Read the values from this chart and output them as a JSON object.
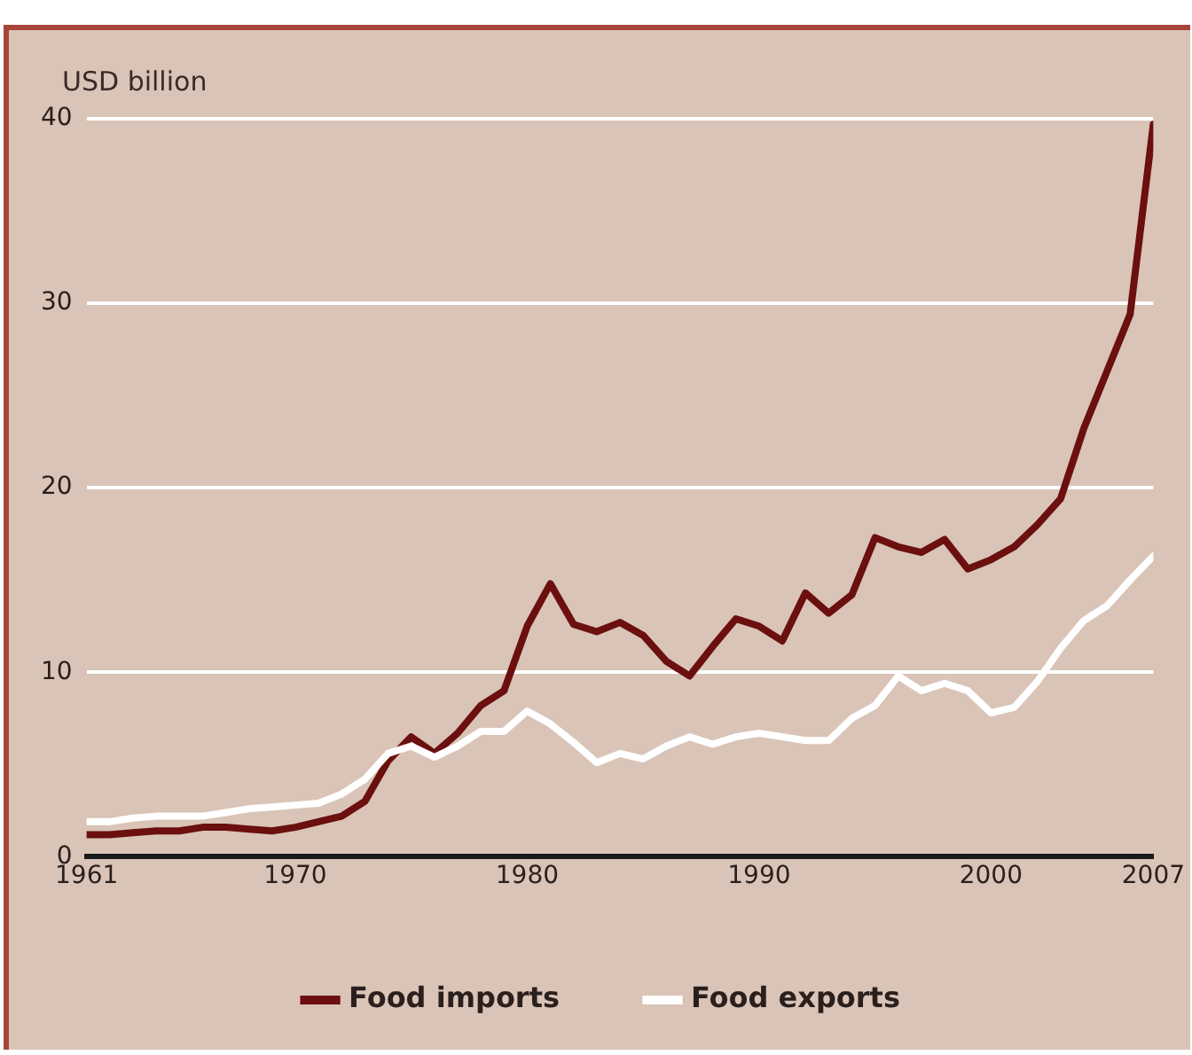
{
  "chart_data": {
    "type": "line",
    "ylabel": "USD billion",
    "x": [
      1961,
      1962,
      1963,
      1964,
      1965,
      1966,
      1967,
      1968,
      1969,
      1970,
      1971,
      1972,
      1973,
      1974,
      1975,
      1976,
      1977,
      1978,
      1979,
      1980,
      1981,
      1982,
      1983,
      1984,
      1985,
      1986,
      1987,
      1988,
      1989,
      1990,
      1991,
      1992,
      1993,
      1994,
      1995,
      1996,
      1997,
      1998,
      1999,
      2000,
      2001,
      2002,
      2003,
      2004,
      2005,
      2006,
      2007
    ],
    "series": [
      {
        "name": "Food imports",
        "color": "#6b0f0f",
        "values": [
          1.2,
          1.2,
          1.3,
          1.4,
          1.4,
          1.6,
          1.6,
          1.5,
          1.4,
          1.6,
          1.9,
          2.2,
          3,
          5.2,
          6.5,
          5.6,
          6.7,
          8.2,
          9,
          12.5,
          14.8,
          12.6,
          12.2,
          12.7,
          12,
          10.6,
          9.8,
          11.4,
          12.9,
          12.5,
          11.7,
          14.3,
          13.2,
          14.2,
          17.3,
          16.8,
          16.5,
          17.2,
          15.6,
          16.1,
          16.8,
          18,
          19.4,
          23.2,
          26.3,
          29.4,
          39.7
        ]
      },
      {
        "name": "Food exports",
        "color": "#ffffff",
        "values": [
          1.9,
          1.9,
          2.1,
          2.2,
          2.2,
          2.2,
          2.4,
          2.6,
          2.7,
          2.8,
          2.9,
          3.4,
          4.2,
          5.6,
          6,
          5.4,
          6,
          6.8,
          6.8,
          7.9,
          7.2,
          6.2,
          5.1,
          5.6,
          5.3,
          6,
          6.5,
          6.1,
          6.5,
          6.7,
          6.5,
          6.3,
          6.3,
          7.5,
          8.2,
          9.8,
          9,
          9.4,
          9,
          7.8,
          8.1,
          9.5,
          11.3,
          12.8,
          13.6,
          15,
          16.3
        ]
      }
    ],
    "xlim": [
      1961,
      2007
    ],
    "xticks": [
      1961,
      1970,
      1980,
      1990,
      2000,
      2007
    ],
    "ylim": [
      0,
      40
    ],
    "yticks": [
      0,
      10,
      20,
      30,
      40
    ],
    "grid": "y",
    "legend": "bottom",
    "marker": "none",
    "line_style": "solid"
  }
}
